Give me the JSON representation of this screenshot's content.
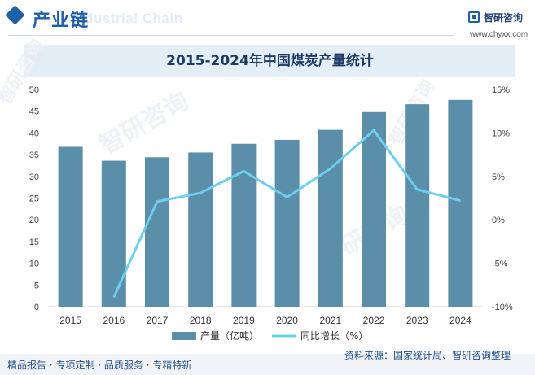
{
  "header": {
    "label": "产业链",
    "watermark_en": "Industrial Chain"
  },
  "brand": {
    "name": "智研咨询",
    "url": "www.chyxx.com"
  },
  "watermark_text": "智研咨询",
  "colors": {
    "accent": "#1f5fa8",
    "bar": "#5b8ea8",
    "line": "#6dcff0",
    "title_band": "#e4eef7",
    "footer_band": "#f2f3f6"
  },
  "chart_data": {
    "type": "bar",
    "title": "2015-2024年中国煤炭产量统计",
    "categories": [
      "2015",
      "2016",
      "2017",
      "2018",
      "2019",
      "2020",
      "2021",
      "2022",
      "2023",
      "2024"
    ],
    "series": [
      {
        "name": "产量（亿吨）",
        "type": "bar",
        "axis": "left",
        "values": [
          36.8,
          33.6,
          34.4,
          35.5,
          37.5,
          38.4,
          40.7,
          44.8,
          46.6,
          47.6
        ]
      },
      {
        "name": "同比增长（%）",
        "type": "line",
        "axis": "right",
        "values": [
          null,
          -8.9,
          2.1,
          3.1,
          5.6,
          2.6,
          5.9,
          10.3,
          3.5,
          2.2
        ]
      }
    ],
    "y_left": {
      "ticks": [
        "0",
        "5",
        "10",
        "15",
        "20",
        "25",
        "30",
        "35",
        "40",
        "45",
        "50"
      ],
      "range": [
        0,
        50
      ]
    },
    "y_right": {
      "ticks": [
        "-10%",
        "-5%",
        "0%",
        "5%",
        "10%",
        "15%"
      ],
      "range": [
        -10,
        15
      ]
    },
    "grid": false,
    "legend_position": "bottom"
  },
  "footer": {
    "left": "精品报告 · 专项定制 · 品质服务 · 专精特新",
    "source": "资料来源：国家统计局、智研咨询整理"
  }
}
